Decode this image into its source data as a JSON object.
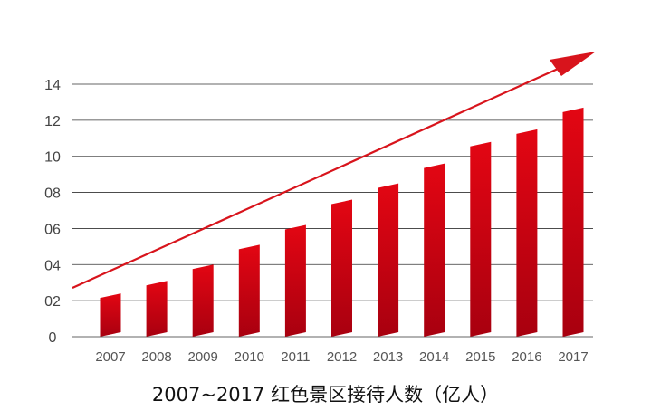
{
  "chart_data": {
    "type": "bar",
    "title": "2007~2017 红色景区接待人数（亿人）",
    "xlabel": "",
    "ylabel": "",
    "categories": [
      "2007",
      "2008",
      "2009",
      "2010",
      "2011",
      "2012",
      "2013",
      "2014",
      "2015",
      "2016",
      "2017"
    ],
    "values": [
      2.4,
      3.1,
      4.0,
      5.1,
      6.2,
      7.6,
      8.5,
      9.6,
      10.8,
      11.5,
      12.7
    ],
    "ylim": [
      0,
      14
    ],
    "ytick_labels": [
      "0",
      "02",
      "04",
      "06",
      "08",
      "10",
      "12",
      "14"
    ],
    "grid": true,
    "legend": "none",
    "annotations": [
      "upward trend arrow"
    ]
  },
  "colors": {
    "bar_top": "#e30613",
    "bar_bottom": "#a8000f",
    "arrow": "#d8141c",
    "grid": "#333333"
  }
}
